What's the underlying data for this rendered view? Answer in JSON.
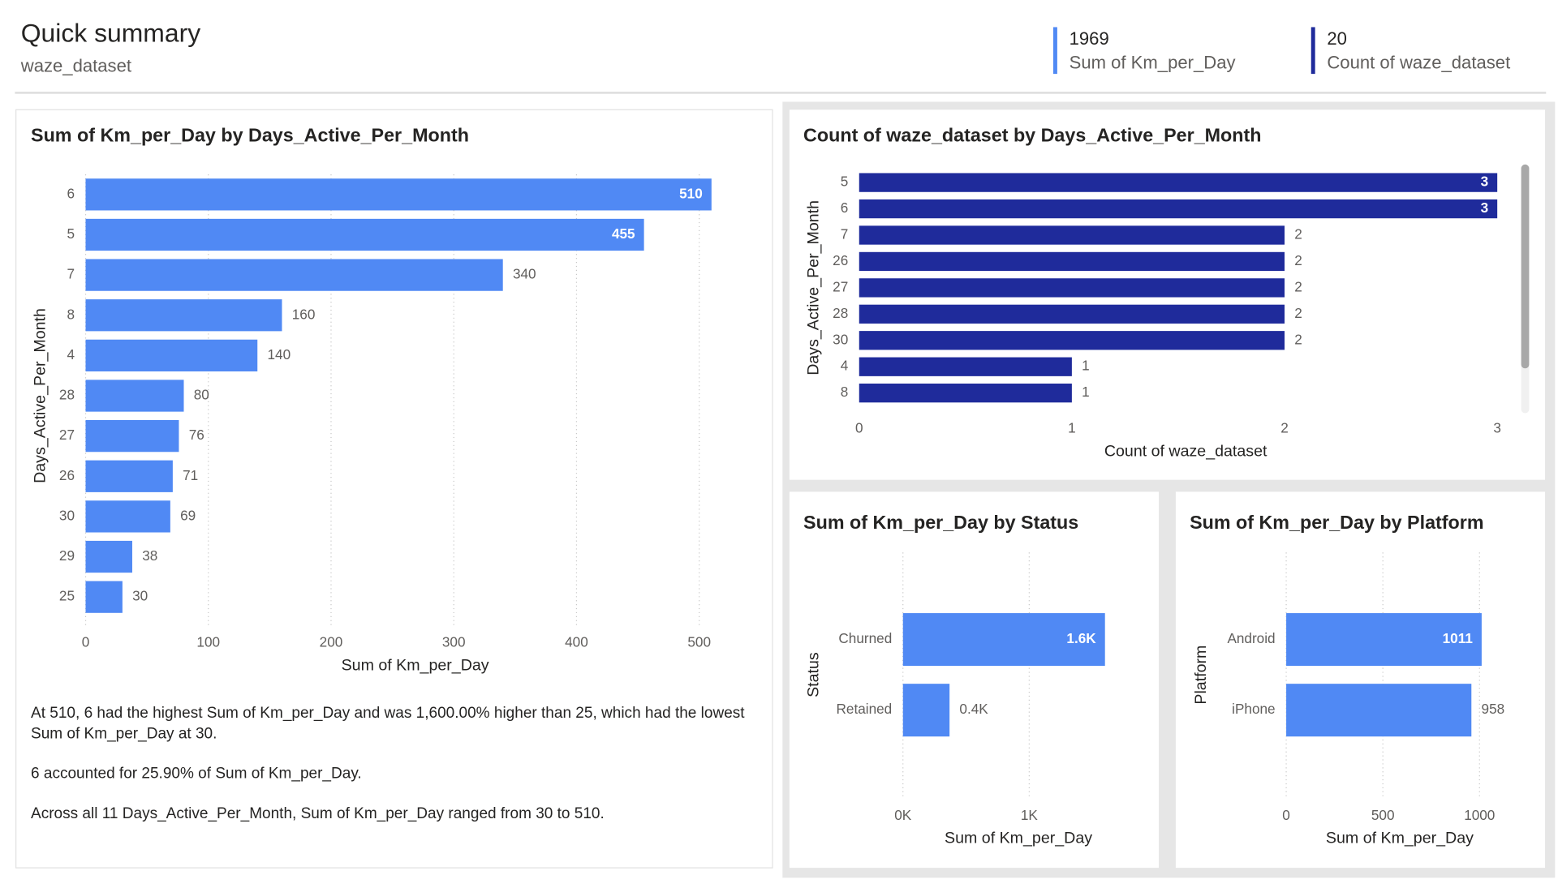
{
  "header": {
    "title": "Quick summary",
    "subtitle": "waze_dataset"
  },
  "cards": [
    {
      "value": 1969,
      "label": "Sum of Km_per_Day",
      "color": "#5089f4"
    },
    {
      "value": 20,
      "label": "Count of waze_dataset",
      "color": "#1f2b9b"
    }
  ],
  "chart_data": [
    {
      "type": "bar",
      "orientation": "horizontal",
      "title": "Sum of Km_per_Day by Days_Active_Per_Month",
      "categories": [
        "6",
        "5",
        "7",
        "8",
        "4",
        "28",
        "27",
        "26",
        "30",
        "29",
        "25"
      ],
      "values": [
        510,
        455,
        340,
        160,
        140,
        80,
        76,
        71,
        69,
        38,
        30
      ],
      "color": "#5089f4",
      "xlabel": "Sum of Km_per_Day",
      "ylabel": "Days_Active_Per_Month",
      "xlim": [
        0,
        550
      ],
      "xticks": [
        0,
        100,
        200,
        300,
        400,
        500
      ],
      "grid": true
    },
    {
      "type": "bar",
      "orientation": "horizontal",
      "title": "Count of waze_dataset by Days_Active_Per_Month",
      "categories": [
        "5",
        "6",
        "7",
        "26",
        "27",
        "28",
        "30",
        "4",
        "8"
      ],
      "values": [
        3,
        3,
        2,
        2,
        2,
        2,
        2,
        1,
        1
      ],
      "color": "#1f2b9b",
      "xlabel": "Count of waze_dataset",
      "ylabel": "Days_Active_Per_Month",
      "xlim": [
        0,
        3
      ],
      "xticks": [
        0,
        1,
        2,
        3
      ],
      "grid": false
    },
    {
      "type": "bar",
      "orientation": "horizontal",
      "title": "Sum of Km_per_Day by Status",
      "categories": [
        "Churned",
        "Retained"
      ],
      "values": [
        1600,
        369
      ],
      "value_labels": [
        "1.6K",
        "0.4K"
      ],
      "color": "#5089f4",
      "xlabel": "Sum of Km_per_Day",
      "ylabel": "Status",
      "xlim": [
        0,
        1900
      ],
      "xticks": [
        {
          "value": 0,
          "label": "0K"
        },
        {
          "value": 1000,
          "label": "1K"
        }
      ],
      "grid": true
    },
    {
      "type": "bar",
      "orientation": "horizontal",
      "title": "Sum of Km_per_Day by Platform",
      "categories": [
        "Android",
        "iPhone"
      ],
      "values": [
        1011,
        958
      ],
      "color": "#5089f4",
      "xlabel": "Sum of Km_per_Day",
      "ylabel": "Platform",
      "xlim": [
        0,
        1200
      ],
      "xticks": [
        0,
        500,
        1000
      ],
      "grid": true
    }
  ],
  "narrative": [
    "At 510, 6 had the highest Sum of Km_per_Day and was 1,600.00% higher than 25, which had the lowest Sum of Km_per_Day at 30.",
    "6 accounted for 25.90% of Sum of Km_per_Day.",
    "Across all 11 Days_Active_Per_Month, Sum of Km_per_Day ranged from 30 to 510."
  ]
}
